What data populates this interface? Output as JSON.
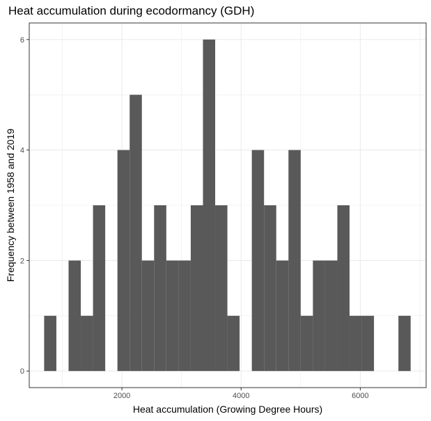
{
  "chart_data": {
    "type": "bar",
    "title": "Heat accumulation during ecodormancy (GDH)",
    "xlabel": "Heat accumulation (Growing Degree Hours)",
    "ylabel": "Frequency between 1958 and 2019",
    "x_ticks": [
      2000,
      4000,
      6000
    ],
    "y_ticks": [
      0,
      2,
      4,
      6
    ],
    "xlim": [
      445,
      7105
    ],
    "ylim": [
      -0.3,
      6.3
    ],
    "bin_width": 205,
    "bins": [
      {
        "x0": 695,
        "x1": 900,
        "count": 1
      },
      {
        "x0": 900,
        "x1": 1105,
        "count": 0
      },
      {
        "x0": 1105,
        "x1": 1310,
        "count": 2
      },
      {
        "x0": 1310,
        "x1": 1515,
        "count": 1
      },
      {
        "x0": 1515,
        "x1": 1720,
        "count": 3
      },
      {
        "x0": 1720,
        "x1": 1925,
        "count": 0
      },
      {
        "x0": 1925,
        "x1": 2130,
        "count": 4
      },
      {
        "x0": 2130,
        "x1": 2335,
        "count": 5
      },
      {
        "x0": 2335,
        "x1": 2540,
        "count": 2
      },
      {
        "x0": 2540,
        "x1": 2745,
        "count": 3
      },
      {
        "x0": 2745,
        "x1": 2950,
        "count": 2
      },
      {
        "x0": 2950,
        "x1": 3155,
        "count": 2
      },
      {
        "x0": 3155,
        "x1": 3360,
        "count": 3
      },
      {
        "x0": 3360,
        "x1": 3565,
        "count": 6
      },
      {
        "x0": 3565,
        "x1": 3770,
        "count": 3
      },
      {
        "x0": 3770,
        "x1": 3975,
        "count": 1
      },
      {
        "x0": 3975,
        "x1": 4180,
        "count": 0
      },
      {
        "x0": 4180,
        "x1": 4385,
        "count": 4
      },
      {
        "x0": 4385,
        "x1": 4590,
        "count": 3
      },
      {
        "x0": 4590,
        "x1": 4795,
        "count": 2
      },
      {
        "x0": 4795,
        "x1": 5000,
        "count": 4
      },
      {
        "x0": 5000,
        "x1": 5205,
        "count": 1
      },
      {
        "x0": 5205,
        "x1": 5410,
        "count": 2
      },
      {
        "x0": 5410,
        "x1": 5615,
        "count": 2
      },
      {
        "x0": 5615,
        "x1": 5820,
        "count": 3
      },
      {
        "x0": 5820,
        "x1": 6025,
        "count": 1
      },
      {
        "x0": 6025,
        "x1": 6230,
        "count": 1
      },
      {
        "x0": 6230,
        "x1": 6435,
        "count": 0
      },
      {
        "x0": 6435,
        "x1": 6640,
        "count": 0
      },
      {
        "x0": 6640,
        "x1": 6845,
        "count": 1
      }
    ],
    "grid": true,
    "legend": "none",
    "bar_color": "#595959",
    "grid_color": "#ebebeb",
    "panel_border_color": "#333333"
  }
}
